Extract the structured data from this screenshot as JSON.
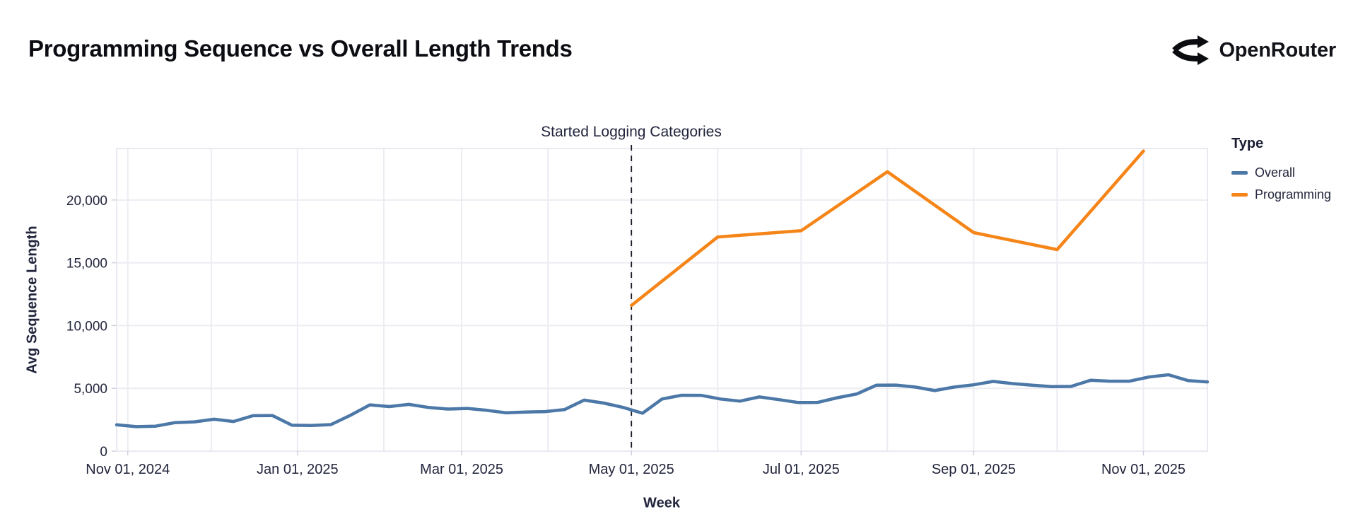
{
  "header": {
    "title": "Programming Sequence vs Overall Length Trends",
    "brand": "OpenRouter"
  },
  "chart_data": {
    "type": "line",
    "title": "Programming Sequence vs Overall Length Trends",
    "xlabel": "Week",
    "ylabel": "Avg Sequence Length",
    "legend_title": "Type",
    "legend_position": "right",
    "grid": true,
    "x_domain": [
      "2024-10-28",
      "2025-11-24"
    ],
    "ylim": [
      0,
      24100
    ],
    "annotation": {
      "label": "Started Logging Categories",
      "date": "2025-05-01"
    },
    "x_grid": [
      "2024-11-01",
      "2024-12-01",
      "2025-01-01",
      "2025-02-01",
      "2025-03-01",
      "2025-04-01",
      "2025-05-01",
      "2025-06-01",
      "2025-07-01",
      "2025-08-01",
      "2025-09-01",
      "2025-10-01",
      "2025-11-01"
    ],
    "x_ticks": [
      {
        "date": "2024-11-01",
        "label": "Nov 01, 2024"
      },
      {
        "date": "2025-01-01",
        "label": "Jan 01, 2025"
      },
      {
        "date": "2025-03-01",
        "label": "Mar 01, 2025"
      },
      {
        "date": "2025-05-01",
        "label": "May 01, 2025"
      },
      {
        "date": "2025-07-01",
        "label": "Jul 01, 2025"
      },
      {
        "date": "2025-09-01",
        "label": "Sep 01, 2025"
      },
      {
        "date": "2025-11-01",
        "label": "Nov 01, 2025"
      }
    ],
    "y_ticks": [
      {
        "value": 0,
        "label": "0"
      },
      {
        "value": 5000,
        "label": "5,000"
      },
      {
        "value": 10000,
        "label": "10,000"
      },
      {
        "value": 15000,
        "label": "15,000"
      },
      {
        "value": 20000,
        "label": "20,000"
      }
    ],
    "series": [
      {
        "name": "Overall",
        "color": "#4c78a8",
        "x": [
          "2024-10-28",
          "2024-11-04",
          "2024-11-11",
          "2024-11-18",
          "2024-11-25",
          "2024-12-02",
          "2024-12-09",
          "2024-12-16",
          "2024-12-23",
          "2024-12-30",
          "2025-01-06",
          "2025-01-13",
          "2025-01-20",
          "2025-01-27",
          "2025-02-03",
          "2025-02-10",
          "2025-02-17",
          "2025-02-24",
          "2025-03-03",
          "2025-03-10",
          "2025-03-17",
          "2025-03-24",
          "2025-03-31",
          "2025-04-07",
          "2025-04-14",
          "2025-04-21",
          "2025-04-28",
          "2025-05-05",
          "2025-05-12",
          "2025-05-19",
          "2025-05-26",
          "2025-06-02",
          "2025-06-09",
          "2025-06-16",
          "2025-06-23",
          "2025-06-30",
          "2025-07-07",
          "2025-07-14",
          "2025-07-21",
          "2025-07-28",
          "2025-08-04",
          "2025-08-11",
          "2025-08-18",
          "2025-08-25",
          "2025-09-01",
          "2025-09-08",
          "2025-09-15",
          "2025-09-22",
          "2025-09-29",
          "2025-10-06",
          "2025-10-13",
          "2025-10-20",
          "2025-10-27",
          "2025-11-03",
          "2025-11-10",
          "2025-11-17",
          "2025-11-24"
        ],
        "values": [
          2100,
          1950,
          1990,
          2270,
          2330,
          2540,
          2360,
          2820,
          2830,
          2060,
          2040,
          2110,
          2850,
          3680,
          3550,
          3720,
          3480,
          3350,
          3400,
          3250,
          3050,
          3110,
          3150,
          3310,
          4060,
          3830,
          3480,
          3020,
          4150,
          4450,
          4440,
          4150,
          3980,
          4320,
          4100,
          3870,
          3880,
          4250,
          4550,
          5250,
          5260,
          5100,
          4820,
          5100,
          5280,
          5550,
          5380,
          5250,
          5140,
          5150,
          5640,
          5570,
          5570,
          5900,
          6080,
          5620,
          5510
        ]
      },
      {
        "name": "Programming",
        "color": "#f58518",
        "x": [
          "2025-05-01",
          "2025-06-01",
          "2025-07-01",
          "2025-08-01",
          "2025-09-01",
          "2025-10-01",
          "2025-11-01"
        ],
        "values": [
          11600,
          17050,
          17550,
          22250,
          17400,
          16050,
          23900
        ]
      }
    ]
  },
  "style": {
    "grid_color": "#ececf3",
    "border_color": "#e2e2ee",
    "tick_color": "#cfcfdd",
    "rule_color": "#16181f"
  }
}
